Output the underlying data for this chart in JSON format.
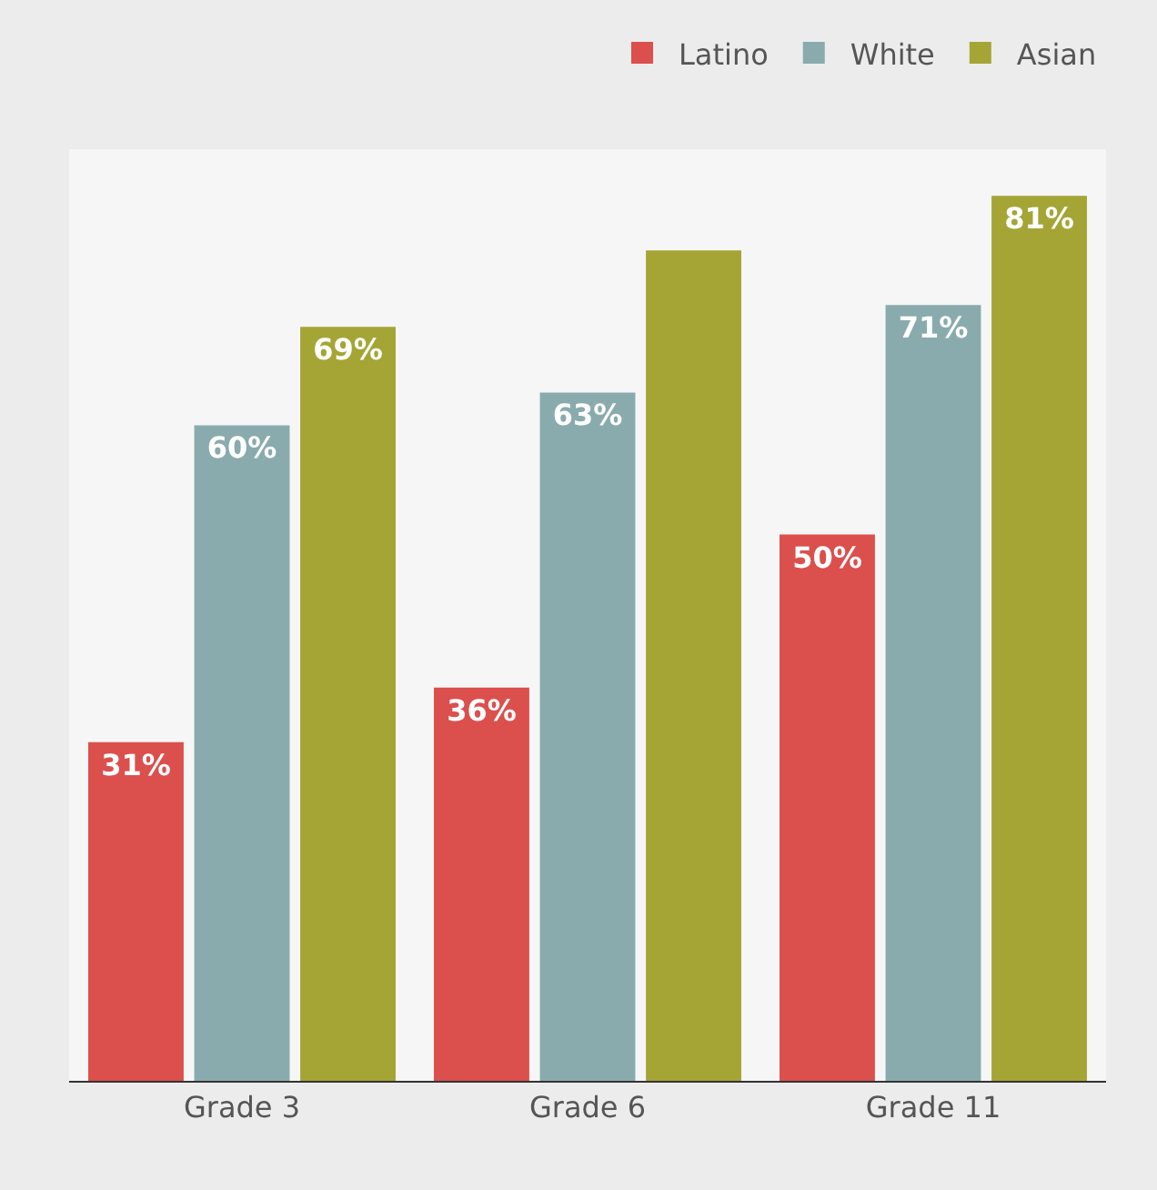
{
  "chart_data": {
    "type": "bar",
    "categories": [
      "Grade 3",
      "Grade 6",
      "Grade 11"
    ],
    "series": [
      {
        "name": "Latino",
        "color": "#db4f4d",
        "values": [
          31,
          36,
          50
        ],
        "value_labels": [
          "31%",
          "36%",
          "50%"
        ]
      },
      {
        "name": "White",
        "color": "#89abad",
        "values": [
          60,
          63,
          71
        ],
        "value_labels": [
          "60%",
          "63%",
          "71%"
        ]
      },
      {
        "name": "Asian",
        "color": "#a5a536",
        "values": [
          69,
          76,
          81
        ],
        "value_labels": [
          "69%",
          null,
          "81%"
        ]
      }
    ],
    "legend": "top right",
    "grid": false
  }
}
